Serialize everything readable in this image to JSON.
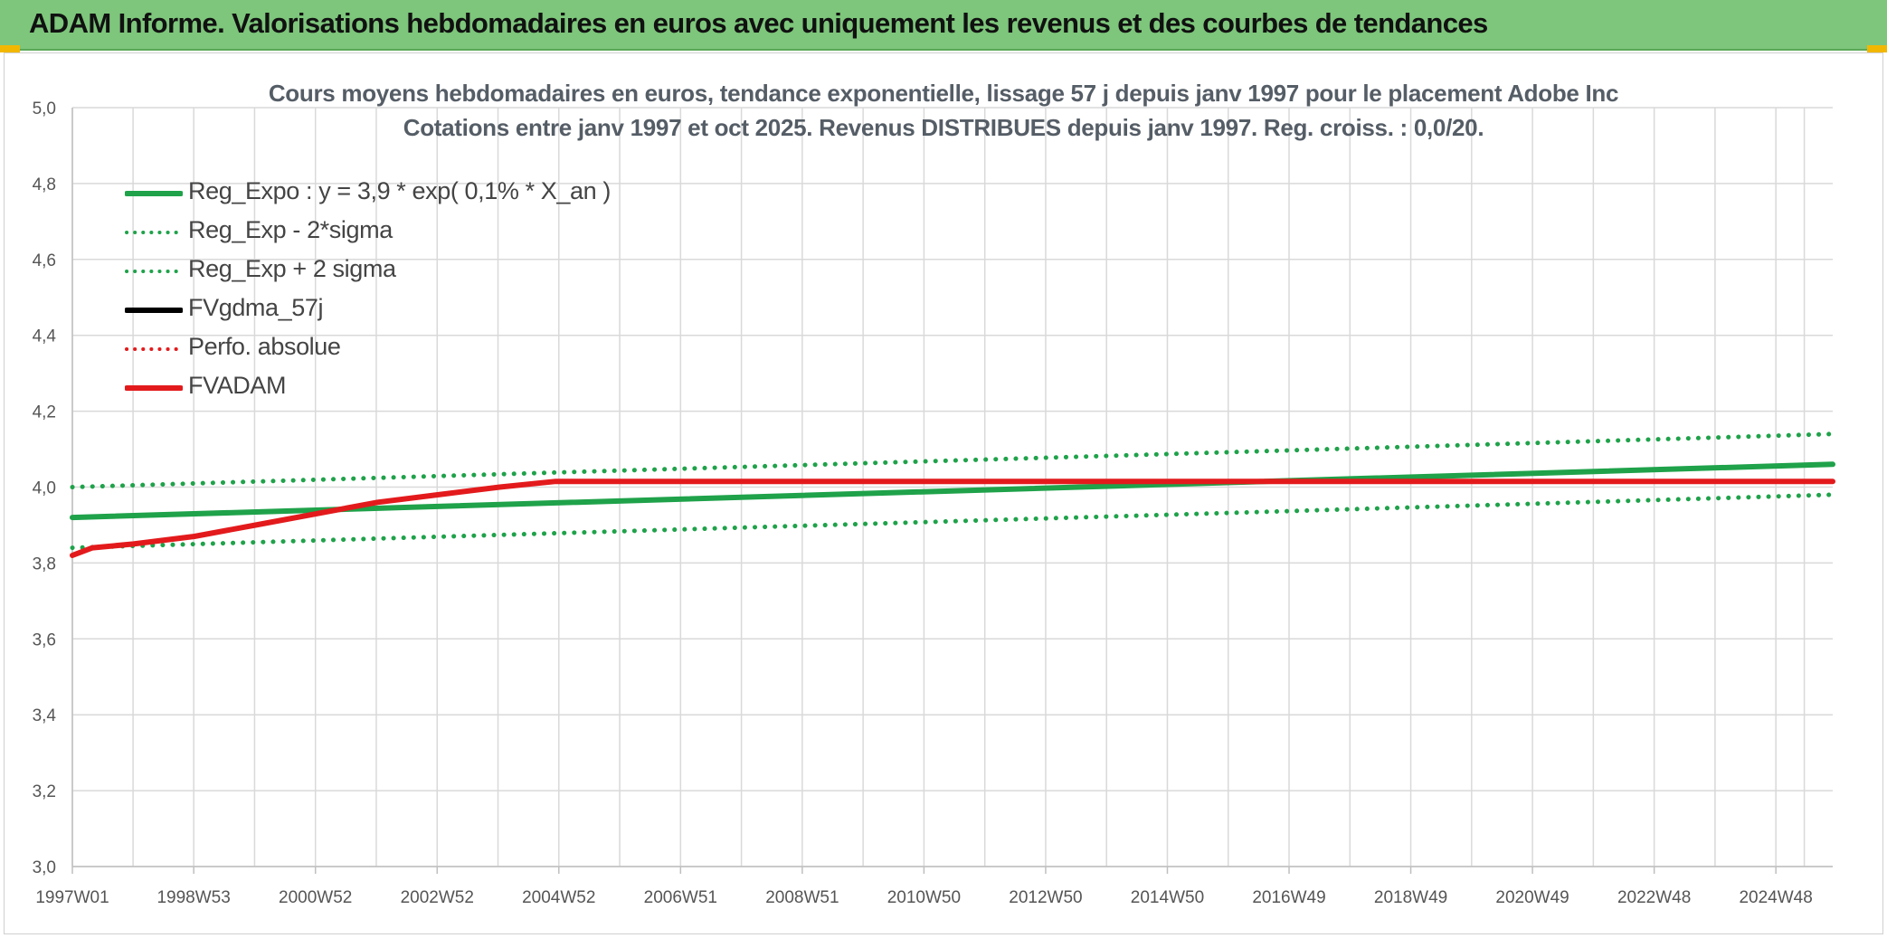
{
  "banner": {
    "title": "ADAM Informe. Valorisations hebdomadaires en euros avec uniquement les revenus et des courbes de tendances"
  },
  "chart_titles": {
    "line1": "Cours moyens hebdomadaires en euros, tendance exponentielle, lissage 57 j depuis janv 1997 pour le placement Adobe Inc",
    "line2": "Cotations entre janv 1997 et oct 2025. Revenus DISTRIBUES depuis janv 1997. Reg. croiss. : 0,0/20."
  },
  "legend": [
    {
      "label": "Reg_Expo : y = 3,9 * exp( 0,1% *  X_an )",
      "color": "#1fa24a",
      "style": "solid"
    },
    {
      "label": "Reg_Exp - 2*sigma",
      "color": "#1fa24a",
      "style": "dotted"
    },
    {
      "label": "Reg_Exp + 2 sigma",
      "color": "#1fa24a",
      "style": "dotted"
    },
    {
      "label": "FVgdma_57j",
      "color": "#000000",
      "style": "solid"
    },
    {
      "label": "Perfo. absolue",
      "color": "#e31a1c",
      "style": "dotted"
    },
    {
      "label": "FVADAM",
      "color": "#e31a1c",
      "style": "solid"
    }
  ],
  "chart_data": {
    "type": "line",
    "title": "Cours moyens hebdomadaires en euros, tendance exponentielle, lissage 57 j depuis janv 1997 pour le placement Adobe Inc",
    "ylim": [
      3.0,
      5.0
    ],
    "y_ticks": [
      "3,0",
      "3,2",
      "3,4",
      "3,6",
      "3,8",
      "4,0",
      "4,2",
      "4,4",
      "4,6",
      "4,8",
      "5,0"
    ],
    "x_range": [
      "1997-01-01",
      "2025-10-31"
    ],
    "x_ticks": [
      {
        "date": "1997-01-01",
        "label": "1997W01"
      },
      {
        "date": "1998-12-28",
        "label": "1998W53"
      },
      {
        "date": "2000-12-25",
        "label": "2000W52"
      },
      {
        "date": "2002-12-23",
        "label": "2002W52"
      },
      {
        "date": "2004-12-20",
        "label": "2004W52"
      },
      {
        "date": "2006-12-18",
        "label": "2006W51"
      },
      {
        "date": "2008-12-15",
        "label": "2008W51"
      },
      {
        "date": "2010-12-13",
        "label": "2010W50"
      },
      {
        "date": "2012-12-10",
        "label": "2012W50"
      },
      {
        "date": "2014-12-08",
        "label": "2014W50"
      },
      {
        "date": "2016-12-05",
        "label": "2016W49"
      },
      {
        "date": "2018-12-03",
        "label": "2018W49"
      },
      {
        "date": "2020-11-30",
        "label": "2020W49"
      },
      {
        "date": "2022-11-28",
        "label": "2022W48"
      },
      {
        "date": "2024-11-25",
        "label": "2024W48"
      }
    ],
    "grid": true,
    "legend_position": "top-left",
    "series": [
      {
        "name": "Reg_Expo : y = 3,9 * exp( 0,1% *  X_an )",
        "color": "#1fa24a",
        "style": "solid",
        "points": [
          [
            "1997-01-01",
            3.92
          ],
          [
            "2025-10-31",
            4.06
          ]
        ]
      },
      {
        "name": "Reg_Exp - 2*sigma",
        "color": "#1fa24a",
        "style": "dotted",
        "points": [
          [
            "1997-01-01",
            3.84
          ],
          [
            "2025-10-31",
            3.98
          ]
        ]
      },
      {
        "name": "Reg_Exp + 2 sigma",
        "color": "#1fa24a",
        "style": "dotted",
        "points": [
          [
            "1997-01-01",
            4.0
          ],
          [
            "2025-10-31",
            4.14
          ]
        ]
      },
      {
        "name": "FVADAM",
        "color": "#e31a1c",
        "style": "solid",
        "points": [
          [
            "1997-01-01",
            3.82
          ],
          [
            "1997-05-01",
            3.84
          ],
          [
            "1998-01-01",
            3.85
          ],
          [
            "1999-01-01",
            3.87
          ],
          [
            "2000-01-01",
            3.9
          ],
          [
            "2001-01-01",
            3.93
          ],
          [
            "2002-01-01",
            3.96
          ],
          [
            "2003-01-01",
            3.98
          ],
          [
            "2004-01-01",
            4.0
          ],
          [
            "2004-12-01",
            4.015
          ],
          [
            "2006-01-01",
            4.015
          ],
          [
            "2025-10-31",
            4.015
          ]
        ]
      },
      {
        "name": "Perfo. absolue",
        "color": "#e31a1c",
        "style": "dotted",
        "points": [
          [
            "1997-01-01",
            3.82
          ],
          [
            "1997-05-01",
            3.84
          ],
          [
            "1998-01-01",
            3.85
          ],
          [
            "1999-01-01",
            3.87
          ],
          [
            "2000-01-01",
            3.9
          ],
          [
            "2001-01-01",
            3.93
          ],
          [
            "2002-01-01",
            3.96
          ],
          [
            "2003-01-01",
            3.98
          ],
          [
            "2004-01-01",
            4.0
          ],
          [
            "2004-12-01",
            4.015
          ],
          [
            "2006-01-01",
            4.015
          ],
          [
            "2025-10-31",
            4.015
          ]
        ]
      }
    ]
  }
}
